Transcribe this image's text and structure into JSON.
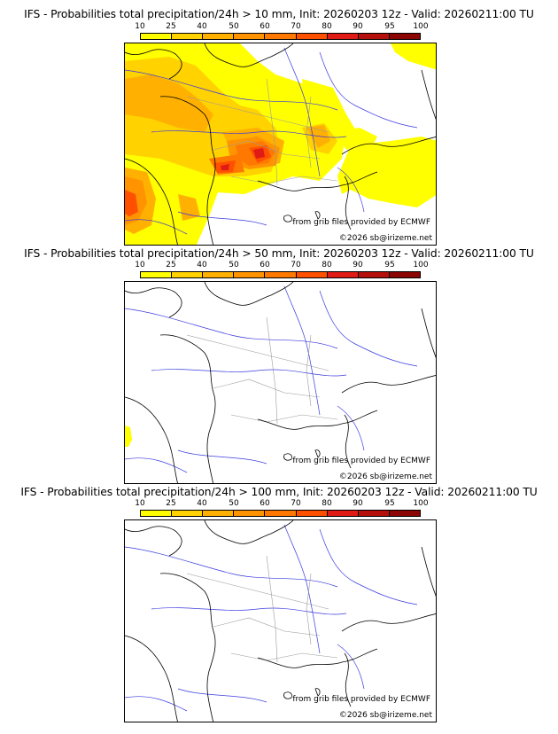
{
  "colorbar": {
    "ticks": [
      "10",
      "25",
      "40",
      "50",
      "60",
      "70",
      "80",
      "90",
      "95",
      "100"
    ],
    "colors": [
      "#ffff00",
      "#ffd200",
      "#ffb000",
      "#ff9400",
      "#ff7800",
      "#ff5000",
      "#e01a14",
      "#b40f0a",
      "#8c0505",
      "#5a0000"
    ]
  },
  "panels": [
    {
      "title": "IFS - Probabilities total precipitation/24h > 10 mm, Init: 20260203 12z - Valid: 20260211:00 TU",
      "source": "from grib files provided by ECMWF",
      "copyright": "©2026 sb@irizeme.net"
    },
    {
      "title": "IFS - Probabilities total precipitation/24h > 50 mm, Init: 20260203 12z - Valid: 20260211:00 TU",
      "source": "from grib files provided by ECMWF",
      "copyright": "©2026 sb@irizeme.net"
    },
    {
      "title": "IFS - Probabilities total precipitation/24h > 100 mm, Init: 20260203 12z - Valid: 20260211:00 TU",
      "source": "from grib files provided by ECMWF",
      "copyright": "©2026 sb@irizeme.net"
    }
  ],
  "map_style": {
    "coast": "#000000",
    "rivers": "#3a3ae0",
    "borders": "#9a9a9a"
  }
}
